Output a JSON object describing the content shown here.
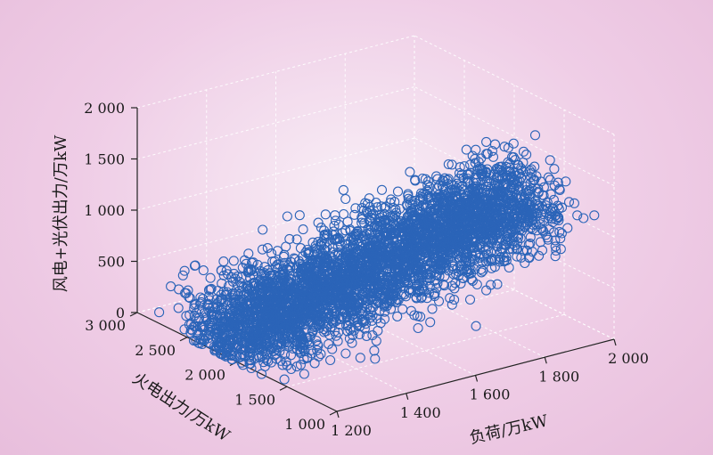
{
  "chart_data": {
    "type": "scatter",
    "projection": "3d",
    "title": "",
    "xlabel": "负荷/万kW",
    "ylabel": "火电出力/万kW",
    "zlabel": "风电+光伏出力/万kW",
    "xlim": [
      1200,
      2000
    ],
    "ylim": [
      1000,
      3000
    ],
    "zlim": [
      0,
      2000
    ],
    "x_ticks": [
      "1 200",
      "1 400",
      "1 600",
      "1 800",
      "2 000"
    ],
    "y_ticks": [
      "1 000",
      "1 500",
      "2 000",
      "2 500",
      "3 000"
    ],
    "z_ticks": [
      "0",
      "500",
      "1 000",
      "1 500",
      "2 000"
    ],
    "grid": true,
    "marker": "open-circle",
    "series_color": "#2b64b8",
    "approx_point_count": 4000,
    "points_sample": [
      {
        "x": 1250,
        "y": 1500,
        "z": 80
      },
      {
        "x": 1300,
        "y": 1700,
        "z": 200
      },
      {
        "x": 1350,
        "y": 1900,
        "z": 300
      },
      {
        "x": 1400,
        "y": 2000,
        "z": 400
      },
      {
        "x": 1450,
        "y": 1800,
        "z": 600
      },
      {
        "x": 1500,
        "y": 2100,
        "z": 500
      },
      {
        "x": 1550,
        "y": 1900,
        "z": 800
      },
      {
        "x": 1600,
        "y": 2000,
        "z": 900
      },
      {
        "x": 1650,
        "y": 1800,
        "z": 1100
      },
      {
        "x": 1700,
        "y": 1700,
        "z": 1300
      },
      {
        "x": 1750,
        "y": 1600,
        "z": 1500
      },
      {
        "x": 1800,
        "y": 1700,
        "z": 1600
      },
      {
        "x": 1850,
        "y": 1500,
        "z": 1200
      },
      {
        "x": 1900,
        "y": 1600,
        "z": 900
      }
    ]
  }
}
